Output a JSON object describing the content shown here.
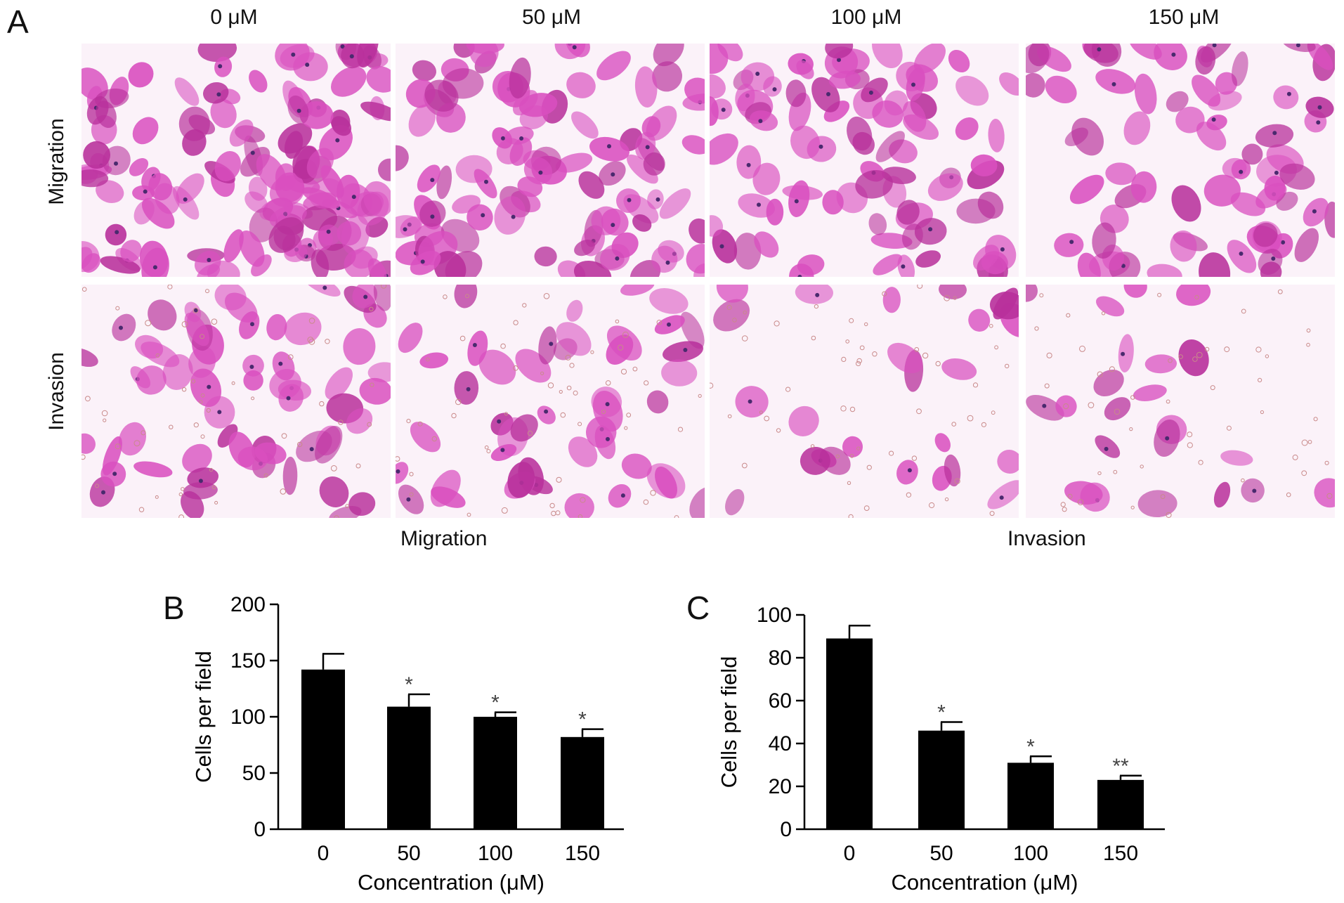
{
  "panelA": {
    "letter": "A",
    "concentrations": [
      "0 μM",
      "50 μM",
      "100 μM",
      "150 μM"
    ],
    "rows": [
      "Migration",
      "Invasion"
    ],
    "bottom_labels": [
      "Migration",
      "Invasion"
    ],
    "colors": {
      "cell": "#d94fbf",
      "cell_dark": "#b8309b",
      "nucleus": "#4a2a6e",
      "background": "#fbf2f9"
    }
  },
  "chart_data": [
    {
      "panel": "B",
      "type": "bar",
      "categories": [
        "0",
        "50",
        "100",
        "150"
      ],
      "values": [
        142,
        109,
        100,
        82
      ],
      "errors": [
        14,
        11,
        4,
        7
      ],
      "significance": [
        "",
        "*",
        "*",
        "*"
      ],
      "xlabel": "Concentration (μM)",
      "ylabel": "Cells per field",
      "ylim": [
        0,
        200
      ],
      "yticks": [
        0,
        50,
        100,
        150,
        200
      ],
      "bar_color": "#000000",
      "grid": false
    },
    {
      "panel": "C",
      "type": "bar",
      "categories": [
        "0",
        "50",
        "100",
        "150"
      ],
      "values": [
        89,
        46,
        31,
        23
      ],
      "errors": [
        6,
        4,
        3,
        2
      ],
      "significance": [
        "",
        "*",
        "*",
        "**"
      ],
      "xlabel": "Concentration (μM)",
      "ylabel": "Cells per field",
      "ylim": [
        0,
        100
      ],
      "yticks": [
        0,
        20,
        40,
        60,
        80,
        100
      ],
      "bar_color": "#000000",
      "grid": false
    }
  ]
}
